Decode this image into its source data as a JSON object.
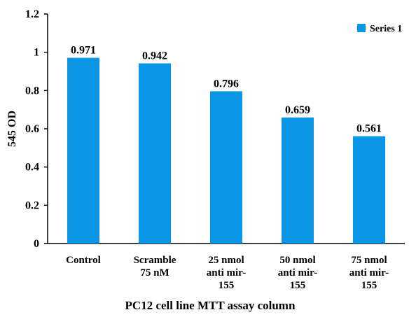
{
  "chart_data": {
    "type": "bar",
    "x_label": "PC12 cell line MTT assay column",
    "y_label": "545 OD",
    "categories": [
      [
        "Control"
      ],
      [
        "Scramble",
        "75 nM"
      ],
      [
        "25 nmol",
        "anti mir-",
        "155"
      ],
      [
        "50 nmol",
        "anti mir-",
        "155"
      ],
      [
        "75 nmol",
        "anti mir-",
        "155"
      ]
    ],
    "series": [
      {
        "name": "Series 1",
        "color": "#0a96e6",
        "values": [
          0.971,
          0.942,
          0.796,
          0.659,
          0.561
        ]
      }
    ],
    "ylim": [
      0,
      1.2
    ],
    "yticks": [
      0,
      0.2,
      0.4,
      0.6,
      0.8,
      1,
      1.2
    ],
    "grid": false,
    "legend": "top-right"
  }
}
